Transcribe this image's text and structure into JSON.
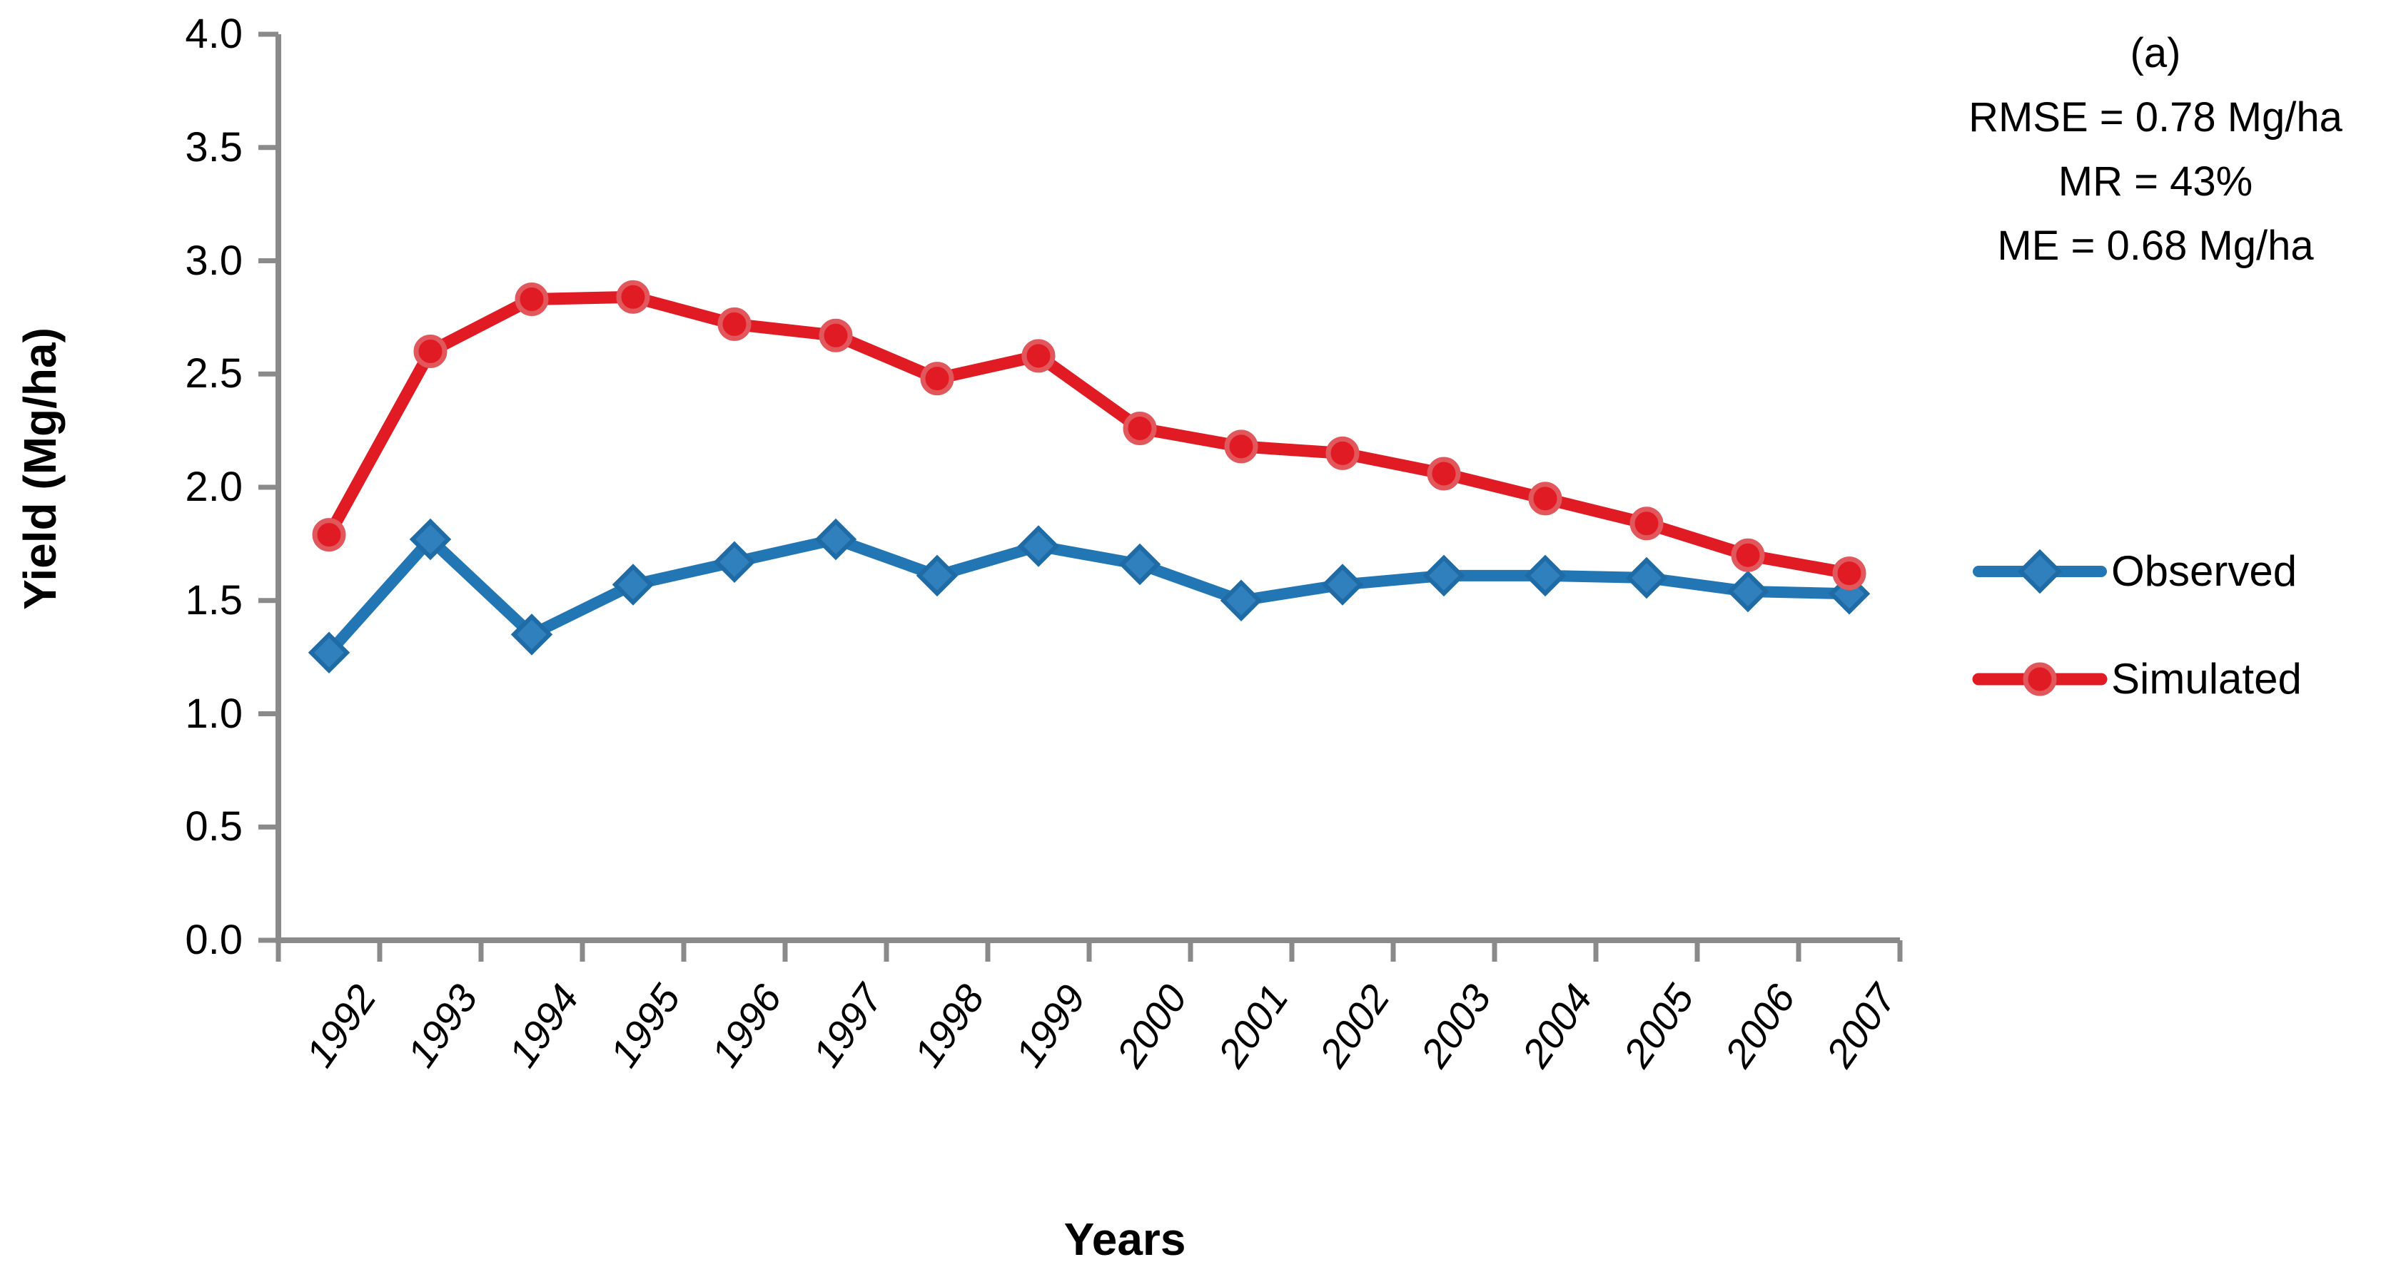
{
  "page": {
    "background": "#FFFFFF"
  },
  "chart_data": {
    "type": "line",
    "title": "",
    "xlabel": "Years",
    "ylabel": "Yield (Mg/ha)",
    "categories": [
      "1992",
      "1993",
      "1994",
      "1995",
      "1996",
      "1997",
      "1998",
      "1999",
      "2000",
      "2001",
      "2002",
      "2003",
      "2004",
      "2005",
      "2006",
      "2007"
    ],
    "series": [
      {
        "name": "Observed",
        "marker": "diamond",
        "line_color": "#2276B4",
        "marker_fill": "#3080BD",
        "marker_border": "#1F6BA5",
        "values": [
          1.27,
          1.77,
          1.35,
          1.57,
          1.67,
          1.77,
          1.61,
          1.74,
          1.66,
          1.5,
          1.57,
          1.61,
          1.61,
          1.6,
          1.54,
          1.53
        ]
      },
      {
        "name": "Simulated",
        "marker": "circle",
        "line_color": "#E01B24",
        "marker_fill": "#E01B24",
        "marker_border": "#E2575C",
        "values": [
          1.79,
          2.6,
          2.83,
          2.84,
          2.72,
          2.67,
          2.48,
          2.58,
          2.26,
          2.18,
          2.15,
          2.06,
          1.95,
          1.84,
          1.7,
          1.62
        ]
      }
    ],
    "ylim": [
      0.0,
      4.0
    ],
    "ytick_step": 0.5,
    "ytick_labels": [
      "0.0",
      "0.5",
      "1.0",
      "1.5",
      "2.0",
      "2.5",
      "3.0",
      "3.5",
      "4.0"
    ],
    "grid": "off",
    "legend_position": "right-middle",
    "annotations": [
      "(a)",
      "RMSE = 0.78 Mg/ha",
      "MR = 43%",
      "ME = 0.68 Mg/ha"
    ],
    "axis_color": "#8A8A8A",
    "text_color": "#000000"
  }
}
